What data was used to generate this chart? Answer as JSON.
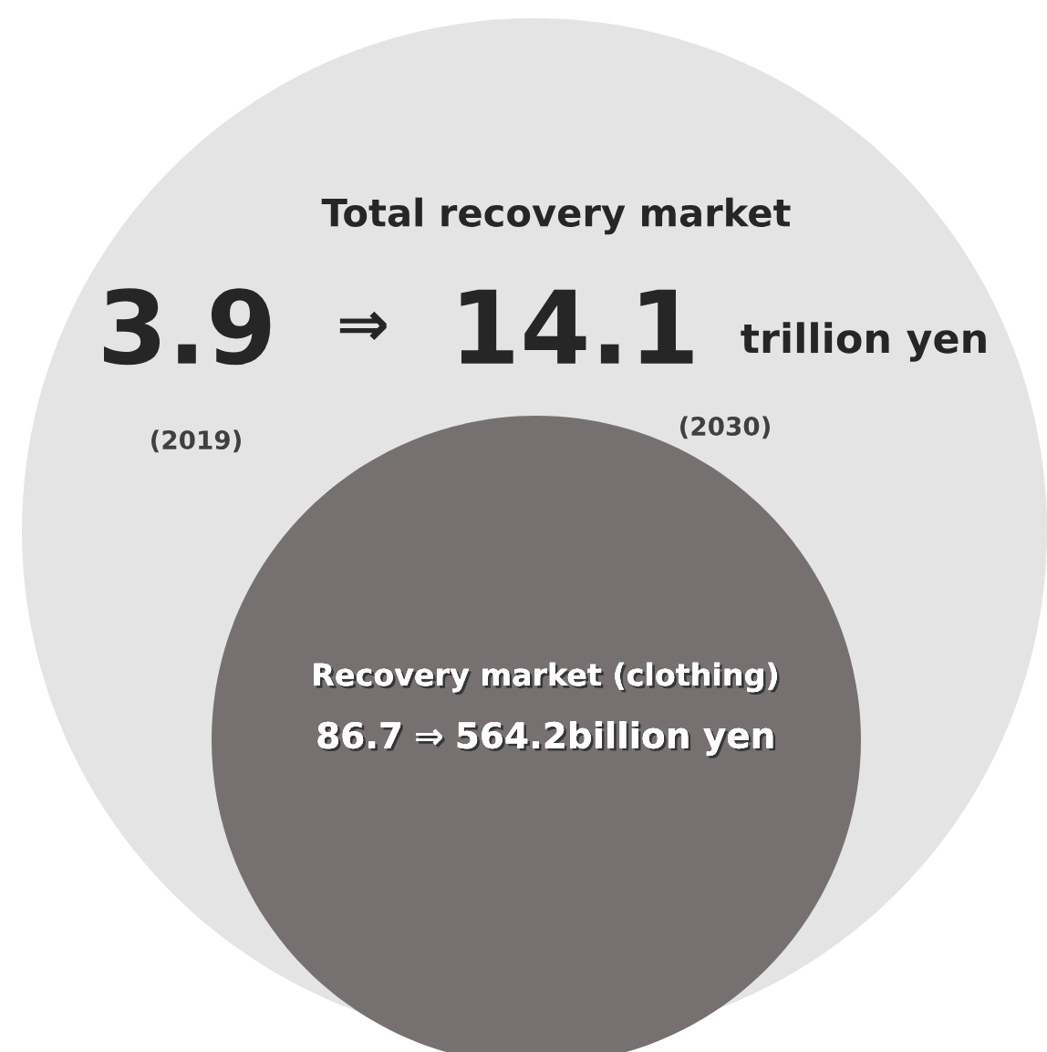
{
  "chart_data": {
    "type": "other",
    "categories": [
      "(2019)",
      "(2030)"
    ],
    "series": [
      {
        "name": "Total recovery market",
        "values": [
          3.9,
          14.1
        ]
      },
      {
        "name": "Recovery market (clothing)",
        "values": [
          86.7,
          564.2
        ]
      }
    ],
    "data_labels": true,
    "annotations": [
      "⇒",
      "trillion yen",
      "billion yen"
    ]
  }
}
